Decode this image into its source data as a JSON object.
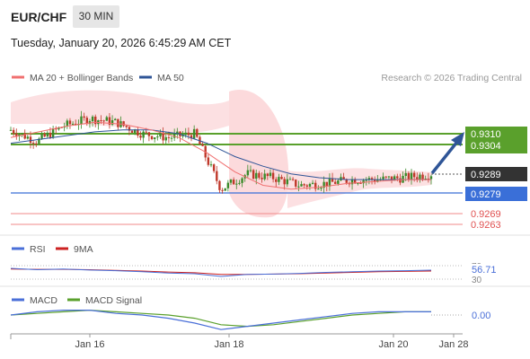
{
  "header": {
    "pair": "EUR/CHF",
    "timeframe": "30 MIN",
    "datetime": "Tuesday, January 20, 2026 6:45:29 AM CET"
  },
  "legend": {
    "ma20_bb": "MA 20 + Bollinger Bands",
    "ma50": "MA 50",
    "credit": "Research © 2026 Trading Central",
    "rsi": "RSI",
    "rsi_ma": "9MA",
    "macd": "MACD",
    "macd_signal": "MACD Signal"
  },
  "colors": {
    "ma20": "#f07070",
    "ma50": "#2f5597",
    "bollinger_fill": "#fbd3d6",
    "resistance": "#5aa02c",
    "support": "#3a6fd8",
    "minor_level": "#f08a8a",
    "current_price": "#333333",
    "arrow": "#2f5597",
    "candle_up": "#3a8a2a",
    "candle_down": "#c0392b",
    "rsi_line": "#4a6fd8",
    "rsi_ma_line": "#cc2222",
    "macd_line": "#4a6fd8",
    "macd_signal_line": "#5aa02c"
  },
  "chart_data": [
    {
      "type": "line",
      "title": "",
      "x_labels": [
        "Jan 16",
        "Jan 18",
        "Jan 20",
        "Jan 28"
      ],
      "ylim": [
        0.9255,
        0.9325
      ],
      "series": [
        {
          "name": "MA 20 + Bollinger Bands",
          "values": [
            0.9308,
            0.9311,
            0.9314,
            0.9316,
            0.9315,
            0.9312,
            0.9308,
            0.93,
            0.929,
            0.9283,
            0.9281,
            0.9282,
            0.9284,
            0.9285,
            0.9286,
            0.9286
          ]
        },
        {
          "name": "MA 50",
          "values": [
            0.9305,
            0.9307,
            0.9309,
            0.9311,
            0.9312,
            0.9312,
            0.931,
            0.9305,
            0.9298,
            0.9293,
            0.9289,
            0.9287,
            0.9286,
            0.9286,
            0.9286,
            0.9286
          ]
        }
      ],
      "levels": [
        {
          "value": 0.931,
          "label": "0.9310",
          "kind": "resistance"
        },
        {
          "value": 0.9304,
          "label": "0.9304",
          "kind": "resistance"
        },
        {
          "value": 0.9289,
          "label": "0.9289",
          "kind": "current"
        },
        {
          "value": 0.9279,
          "label": "0.9279",
          "kind": "support"
        },
        {
          "value": 0.9269,
          "label": "0.9269",
          "kind": "minor"
        },
        {
          "value": 0.9263,
          "label": "0.9263",
          "kind": "minor"
        }
      ],
      "close": [
        0.9312,
        0.9306,
        0.9314,
        0.9318,
        0.9316,
        0.931,
        0.9308,
        0.931,
        0.9281,
        0.9289,
        0.9287,
        0.9283,
        0.9284,
        0.9286,
        0.9286,
        0.9287,
        0.9289
      ]
    },
    {
      "type": "line",
      "title": "",
      "name": "RSI",
      "ylim": [
        30,
        70
      ],
      "ticks": [
        "70",
        "30"
      ],
      "last_value": "56.71",
      "series": [
        {
          "name": "RSI",
          "values": [
            62,
            58,
            60,
            57,
            55,
            52,
            48,
            46,
            38,
            44,
            45,
            47,
            50,
            52,
            54,
            55,
            56.71
          ]
        },
        {
          "name": "9MA",
          "values": [
            60,
            59,
            59,
            58,
            56,
            54,
            51,
            49,
            44,
            44,
            45,
            46,
            48,
            50,
            52,
            53,
            54
          ]
        }
      ]
    },
    {
      "type": "line",
      "title": "",
      "name": "MACD",
      "zero_label": "0.00",
      "series": [
        {
          "name": "MACD",
          "values": [
            0.0,
            0.02,
            0.03,
            0.03,
            0.01,
            0.0,
            -0.02,
            -0.05,
            -0.09,
            -0.07,
            -0.05,
            -0.03,
            -0.01,
            0.01,
            0.02,
            0.02,
            0.02
          ]
        },
        {
          "name": "MACD Signal",
          "values": [
            0.0,
            0.01,
            0.02,
            0.03,
            0.02,
            0.01,
            0.0,
            -0.02,
            -0.06,
            -0.07,
            -0.06,
            -0.04,
            -0.02,
            0.0,
            0.01,
            0.02,
            0.02
          ]
        }
      ]
    }
  ]
}
